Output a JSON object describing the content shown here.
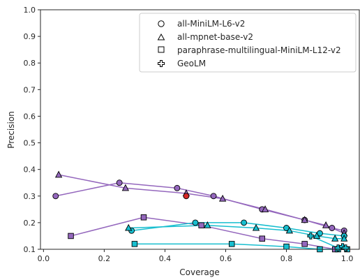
{
  "chart_data": {
    "type": "scatter",
    "xlabel": "Coverage",
    "ylabel": "Precision",
    "xlim": [
      -0.01,
      1.04
    ],
    "ylim": [
      0.1,
      1.0
    ],
    "xticks": [
      "0.0",
      "0.2",
      "0.4",
      "0.6",
      "0.8",
      "1.0"
    ],
    "yticks": [
      "0.1",
      "0.2",
      "0.3",
      "0.4",
      "0.5",
      "0.6",
      "0.7",
      "0.8",
      "0.9",
      "1.0"
    ],
    "grid": false,
    "legend_placement": "top-right",
    "legend": [
      {
        "label": "all-MiniLM-L6-v2",
        "marker": "circle"
      },
      {
        "label": "all-mpnet-base-v2",
        "marker": "triangle"
      },
      {
        "label": "paraphrase-multilingual-MiniLM-L12-v2",
        "marker": "square"
      },
      {
        "label": "GeoLM",
        "marker": "plus"
      }
    ],
    "colors": {
      "purple": "#9467bd",
      "cyan": "#17becf",
      "red": "#d62728"
    },
    "series": [
      {
        "marker": "circle",
        "color": "#9467bd",
        "points": [
          [
            0.04,
            0.3
          ],
          [
            0.25,
            0.35
          ],
          [
            0.44,
            0.33
          ],
          [
            0.56,
            0.3
          ],
          [
            0.72,
            0.25
          ],
          [
            0.86,
            0.21
          ],
          [
            0.95,
            0.18
          ],
          [
            0.99,
            0.17
          ]
        ]
      },
      {
        "marker": "triangle",
        "color": "#9467bd",
        "points": [
          [
            0.05,
            0.38
          ],
          [
            0.27,
            0.33
          ],
          [
            0.47,
            0.31
          ],
          [
            0.59,
            0.29
          ],
          [
            0.73,
            0.25
          ],
          [
            0.86,
            0.21
          ],
          [
            0.93,
            0.19
          ],
          [
            0.99,
            0.16
          ]
        ]
      },
      {
        "marker": "square",
        "color": "#9467bd",
        "points": [
          [
            0.09,
            0.15
          ],
          [
            0.33,
            0.22
          ],
          [
            0.52,
            0.19
          ],
          [
            0.72,
            0.14
          ],
          [
            0.86,
            0.12
          ],
          [
            0.96,
            0.1
          ]
        ]
      },
      {
        "marker": "circle",
        "color": "#17becf",
        "points": [
          [
            0.29,
            0.17
          ],
          [
            0.5,
            0.2
          ],
          [
            0.66,
            0.2
          ],
          [
            0.8,
            0.18
          ],
          [
            0.91,
            0.16
          ],
          [
            0.99,
            0.15
          ]
        ]
      },
      {
        "marker": "triangle",
        "color": "#17becf",
        "points": [
          [
            0.28,
            0.18
          ],
          [
            0.54,
            0.19
          ],
          [
            0.7,
            0.18
          ],
          [
            0.81,
            0.17
          ],
          [
            0.9,
            0.15
          ],
          [
            0.96,
            0.14
          ],
          [
            0.99,
            0.14
          ]
        ]
      },
      {
        "marker": "square",
        "color": "#17becf",
        "points": [
          [
            0.3,
            0.12
          ],
          [
            0.62,
            0.12
          ],
          [
            0.8,
            0.11
          ],
          [
            0.91,
            0.1
          ],
          [
            0.97,
            0.1
          ],
          [
            1.0,
            0.1
          ]
        ]
      },
      {
        "marker": "plus",
        "color": "#17becf",
        "points": [
          [
            0.88,
            0.15
          ],
          [
            0.97,
            0.105
          ],
          [
            0.985,
            0.11
          ],
          [
            0.995,
            0.105
          ]
        ]
      },
      {
        "marker": "circle",
        "color": "#d62728",
        "points": [
          [
            0.47,
            0.3
          ]
        ]
      }
    ]
  }
}
